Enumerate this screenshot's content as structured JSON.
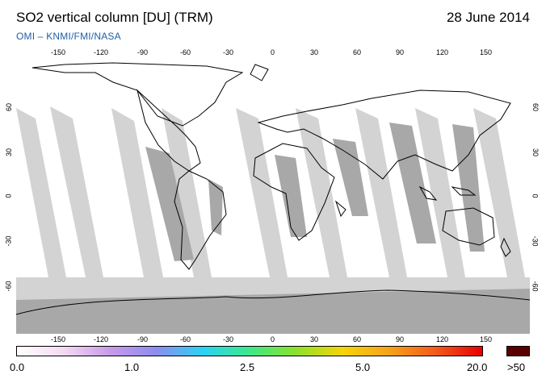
{
  "header": {
    "title": "SO2 vertical column [DU] (TRM)",
    "date": "28 June 2014",
    "credit": "OMI  –  KNMI/FMI/NASA"
  },
  "map": {
    "projection": "equirectangular",
    "lon_range": [
      -180,
      180
    ],
    "lat_range": [
      -90,
      90
    ],
    "lon_ticks": [
      "-150",
      "-120",
      "-90",
      "-60",
      "-30",
      "0",
      "30",
      "60",
      "90",
      "120",
      "150"
    ],
    "lat_ticks": [
      "60",
      "30",
      "0",
      "-30",
      "-60"
    ],
    "ocean_color": "#ffffff",
    "land_outline_color": "#000000",
    "orbit_gap_color_light": "#d3d3d3",
    "orbit_gap_color_dark": "#a8a8a8"
  },
  "colorbar": {
    "labels": [
      "0.0",
      "1.0",
      "2.5",
      "5.0",
      "20.0",
      ">50"
    ],
    "colors": [
      "#ffffff",
      "#f4d9f3",
      "#c79ae9",
      "#8c8cf0",
      "#2ad3f5",
      "#3de88a",
      "#8be22a",
      "#f7d408",
      "#f7a21a",
      "#f35a1a",
      "#e80000",
      "#5a0000"
    ],
    "over_color": "#5a0000"
  }
}
